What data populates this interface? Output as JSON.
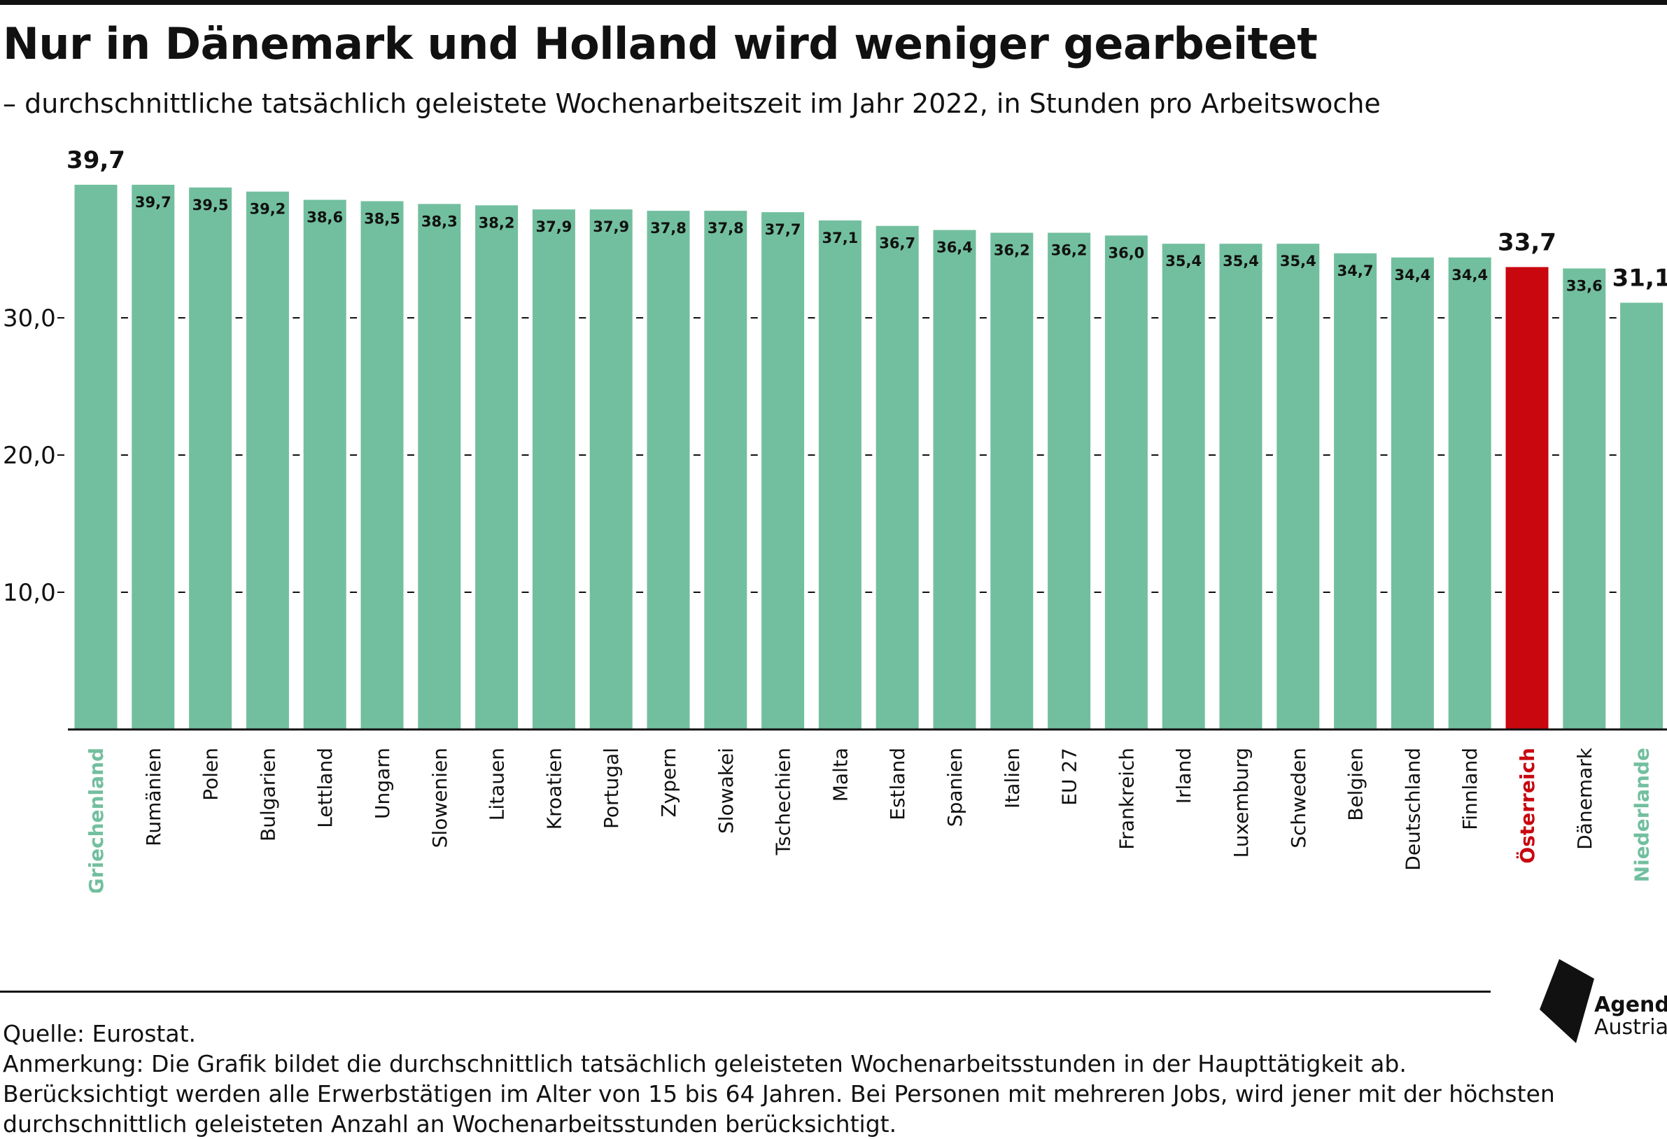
{
  "title": "Nur in Dänemark und Holland wird weniger gearbeitet",
  "subtitle": "– durchschnittliche tatsächlich geleistete Wochenarbeitszeit im Jahr 2022, in Stunden pro Arbeitswoche",
  "footer": {
    "source": "Quelle: Eurostat.",
    "note_1": "Anmerkung: Die Grafik bildet die durchschnittlich tatsächlich geleisteten Wochenarbeitsstunden in der Haupttätigkeit ab.",
    "note_2": "Berücksichtigt werden alle Erwerbstätigen im Alter von 15 bis 64 Jahren. Bei Personen mit mehreren Jobs, wird jener mit der höchsten",
    "note_3": "durchschnittlich geleisteten Anzahl an Wochenarbeitsstunden berücksichtigt."
  },
  "logo": {
    "line1": "Agenda",
    "line2": "Austria"
  },
  "colors": {
    "bar": "#72bf9f",
    "highlight": "#c8070f",
    "text": "#111111"
  },
  "chart_data": {
    "type": "bar",
    "title": "Nur in Dänemark und Holland wird weniger gearbeitet",
    "xlabel": "",
    "ylabel": "",
    "ylim": [
      0,
      40
    ],
    "yticks": [
      10,
      20,
      30
    ],
    "ytick_labels": [
      "10,0",
      "20,0",
      "30,0"
    ],
    "grid": false,
    "categories": [
      "Griechenland",
      "Rumänien",
      "Polen",
      "Bulgarien",
      "Lettland",
      "Ungarn",
      "Slowenien",
      "Litauen",
      "Kroatien",
      "Portugal",
      "Zypern",
      "Slowakei",
      "Tschechien",
      "Malta",
      "Estland",
      "Spanien",
      "Italien",
      "EU 27",
      "Frankreich",
      "Irland",
      "Luxemburg",
      "Schweden",
      "Belgien",
      "Deutschland",
      "Finnland",
      "Österreich",
      "Dänemark",
      "Niederlande"
    ],
    "values": [
      39.7,
      39.7,
      39.5,
      39.2,
      38.6,
      38.5,
      38.3,
      38.2,
      37.9,
      37.9,
      37.8,
      37.8,
      37.7,
      37.1,
      36.7,
      36.4,
      36.2,
      36.2,
      36.0,
      35.4,
      35.4,
      35.4,
      34.7,
      34.4,
      34.4,
      33.7,
      33.6,
      31.1
    ],
    "value_labels": [
      "39,7",
      "39,7",
      "39,5",
      "39,2",
      "38,6",
      "38,5",
      "38,3",
      "38,2",
      "37,9",
      "37,9",
      "37,8",
      "37,8",
      "37,7",
      "37,1",
      "36,7",
      "36,4",
      "36,2",
      "36,2",
      "36,0",
      "35,4",
      "35,4",
      "35,4",
      "34,7",
      "34,4",
      "34,4",
      "33,7",
      "33,6",
      "31,1"
    ],
    "label_position": [
      "above",
      "inside",
      "inside",
      "inside",
      "inside",
      "inside",
      "inside",
      "inside",
      "inside",
      "inside",
      "inside",
      "inside",
      "inside",
      "inside",
      "inside",
      "inside",
      "inside",
      "inside",
      "inside",
      "inside",
      "inside",
      "inside",
      "inside",
      "inside",
      "inside",
      "above",
      "inside",
      "above"
    ],
    "highlight": [
      "Österreich"
    ],
    "category_label_colors": {
      "Griechenland": "#72bf9f",
      "Niederlande": "#72bf9f",
      "Österreich": "#c8070f"
    }
  }
}
